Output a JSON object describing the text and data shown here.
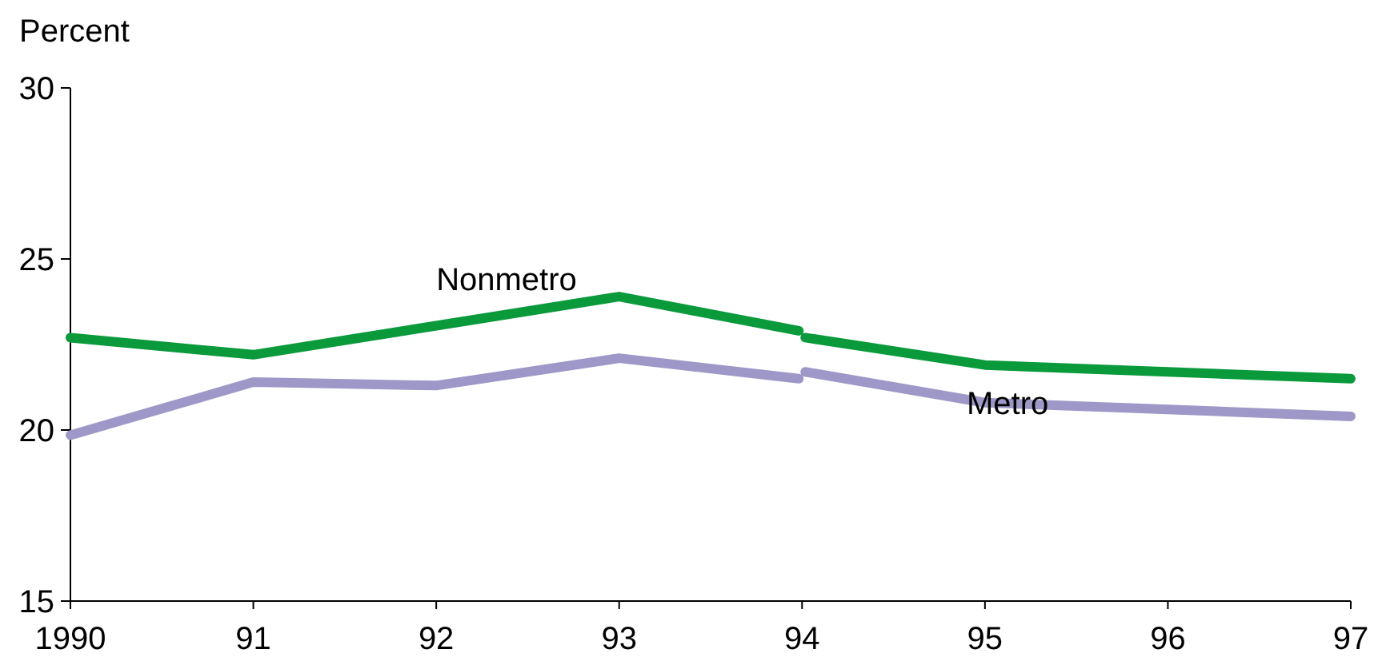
{
  "chart_data": {
    "type": "line",
    "ylabel": "Percent",
    "xlim": [
      1990,
      1997
    ],
    "xticks": [
      {
        "value": 1990,
        "label": "1990"
      },
      {
        "value": 1991,
        "label": "91"
      },
      {
        "value": 1992,
        "label": "92"
      },
      {
        "value": 1993,
        "label": "93"
      },
      {
        "value": 1994,
        "label": "94"
      },
      {
        "value": 1995,
        "label": "95"
      },
      {
        "value": 1996,
        "label": "96"
      },
      {
        "value": 1997,
        "label": "97"
      }
    ],
    "ylim": [
      15,
      30
    ],
    "yticks": [
      15,
      20,
      25,
      30
    ],
    "grid": false,
    "marker": "none",
    "line_style": "solid",
    "series": [
      {
        "name": "Nonmetro",
        "color": "#0a9a3c",
        "x": [
          1990,
          1991,
          1992,
          1993,
          1994,
          1994,
          1995,
          1996,
          1997
        ],
        "values": [
          22.7,
          22.2,
          23.05,
          23.9,
          22.9,
          22.7,
          21.9,
          21.7,
          21.5
        ]
      },
      {
        "name": "Metro",
        "color": "#9e98c8",
        "x": [
          1990,
          1991,
          1992,
          1993,
          1994,
          1994,
          1995,
          1996,
          1997
        ],
        "values": [
          19.85,
          21.4,
          21.3,
          22.1,
          21.5,
          21.7,
          20.8,
          20.6,
          20.4
        ]
      }
    ]
  }
}
